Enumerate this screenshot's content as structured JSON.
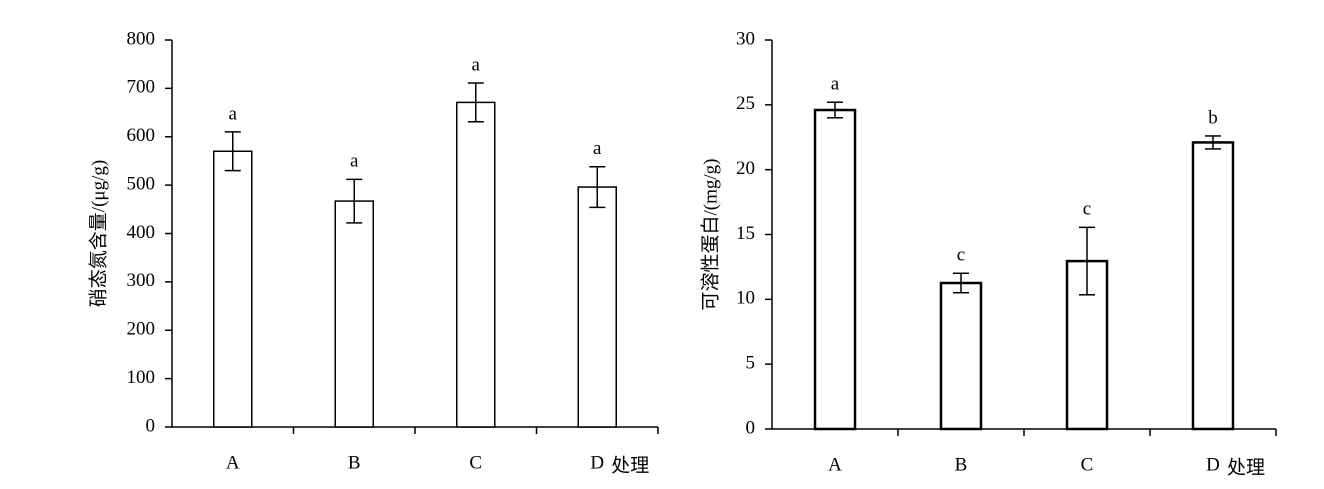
{
  "chart_data": [
    {
      "type": "bar",
      "y_label": "硝态氮含量/(μg/g)",
      "x_label": "处理",
      "categories": [
        "A",
        "B",
        "C",
        "D"
      ],
      "values": [
        570,
        467,
        671,
        496
      ],
      "errors": [
        40,
        45,
        40,
        42
      ],
      "annotations": [
        "a",
        "a",
        "a",
        "a"
      ],
      "color": "#ffffff",
      "ylim": [
        0,
        800
      ],
      "yticks": [
        0,
        100,
        200,
        300,
        400,
        500,
        600,
        700,
        800
      ]
    },
    {
      "type": "bar",
      "y_label": "可溶性蛋白/(mg/g)",
      "x_label": "处理",
      "categories": [
        "A",
        "B",
        "C",
        "D"
      ],
      "values": [
        24.6,
        11.26,
        12.95,
        22.1
      ],
      "errors": [
        0.6,
        0.75,
        2.6,
        0.5
      ],
      "annotations": [
        "a",
        "c",
        "c",
        "b"
      ],
      "color": "#ffffff",
      "ylim": [
        0,
        30
      ],
      "yticks": [
        0,
        5,
        10,
        15,
        20,
        25,
        30
      ]
    }
  ]
}
